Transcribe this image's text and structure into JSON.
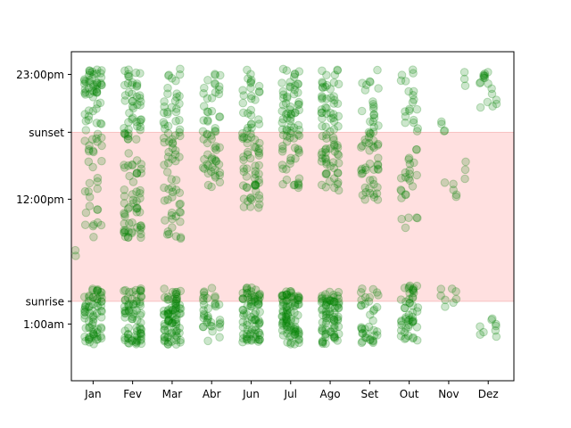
{
  "chart_data": {
    "type": "scatter",
    "title": "",
    "xlabel": "",
    "ylabel": "",
    "x_ticks": [
      {
        "label": "Jan",
        "value": 1
      },
      {
        "label": "Fev",
        "value": 2
      },
      {
        "label": "Mar",
        "value": 3
      },
      {
        "label": "Abr",
        "value": 4
      },
      {
        "label": "Jun",
        "value": 5
      },
      {
        "label": "Jul",
        "value": 6
      },
      {
        "label": "Ago",
        "value": 7
      },
      {
        "label": "Set",
        "value": 8
      },
      {
        "label": "Out",
        "value": 9
      },
      {
        "label": "Nov",
        "value": 10
      },
      {
        "label": "Dez",
        "value": 11
      }
    ],
    "y_ticks": [
      {
        "label": "23:00pm",
        "value": 23
      },
      {
        "label": "sunset",
        "value": 17.9
      },
      {
        "label": "12:00pm",
        "value": 12
      },
      {
        "label": "sunrise",
        "value": 3
      },
      {
        "label": "1:00am",
        "value": 1
      }
    ],
    "xlim": [
      0.45,
      11.65
    ],
    "ylim": [
      -4,
      25
    ],
    "grid": false,
    "shaded_band": {
      "from": 3,
      "to": 17.9,
      "color": "#ffe0e0",
      "edge_color": "#f6b8b8"
    },
    "marker_color": "#008000",
    "marker_alpha": 0.2,
    "clusters": [
      {
        "x": 1,
        "n": 155,
        "ranges": [
          [
            -0.8,
            4.2,
            0.45
          ],
          [
            8.5,
            20.5,
            0.3
          ],
          [
            21,
            23.5,
            0.25
          ]
        ]
      },
      {
        "x": 2,
        "n": 180,
        "ranges": [
          [
            -0.8,
            4.2,
            0.4
          ],
          [
            8.5,
            23.5,
            0.6
          ]
        ]
      },
      {
        "x": 3,
        "n": 160,
        "ranges": [
          [
            -0.8,
            4.2,
            0.55
          ],
          [
            8.5,
            23.5,
            0.45
          ]
        ]
      },
      {
        "x": 4,
        "n": 95,
        "ranges": [
          [
            -0.5,
            4.2,
            0.35
          ],
          [
            13,
            23.5,
            0.65
          ]
        ]
      },
      {
        "x": 5,
        "n": 160,
        "ranges": [
          [
            -0.8,
            4.2,
            0.5
          ],
          [
            11,
            23.5,
            0.5
          ]
        ]
      },
      {
        "x": 6,
        "n": 170,
        "ranges": [
          [
            -0.8,
            4,
            0.5
          ],
          [
            13,
            23.5,
            0.5
          ]
        ]
      },
      {
        "x": 7,
        "n": 160,
        "ranges": [
          [
            -0.8,
            4,
            0.45
          ],
          [
            12.5,
            23.5,
            0.55
          ]
        ]
      },
      {
        "x": 8,
        "n": 100,
        "ranges": [
          [
            -0.8,
            4.2,
            0.45
          ],
          [
            11.5,
            23.5,
            0.55
          ]
        ]
      },
      {
        "x": 9,
        "n": 95,
        "ranges": [
          [
            -0.5,
            4.5,
            0.45
          ],
          [
            9,
            23.5,
            0.55
          ]
        ]
      },
      {
        "x": 10,
        "n": 16,
        "ranges": [
          [
            2.5,
            5,
            0.5
          ],
          [
            12,
            20,
            0.5
          ]
        ]
      },
      {
        "x": 11,
        "n": 26,
        "ranges": [
          [
            -0.5,
            1.5,
            0.4
          ],
          [
            19.5,
            23.3,
            0.6
          ]
        ]
      }
    ],
    "extra_points": [
      {
        "x": 10.4,
        "y": 23.2
      },
      {
        "x": 10.4,
        "y": 22.6
      },
      {
        "x": 10.42,
        "y": 22.0
      },
      {
        "x": 10.43,
        "y": 15.3
      },
      {
        "x": 10.42,
        "y": 14.6
      },
      {
        "x": 10.41,
        "y": 13.8
      },
      {
        "x": 0.55,
        "y": 7.5
      },
      {
        "x": 0.56,
        "y": 7.0
      },
      {
        "x": 9.8,
        "y": 3.5
      }
    ]
  }
}
